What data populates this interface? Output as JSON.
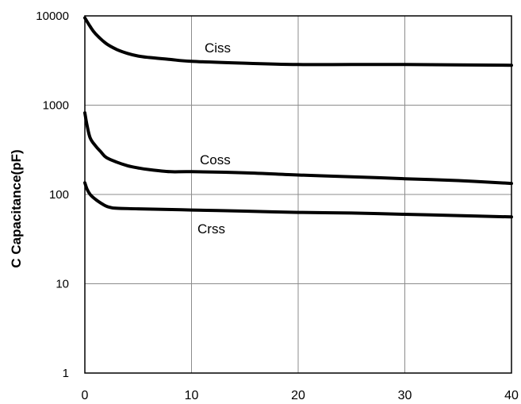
{
  "chart_data": {
    "type": "line",
    "title": "",
    "xlabel": "",
    "ylabel": "C Capacitance(pF)",
    "y_scale": "log",
    "xlim": [
      0,
      40
    ],
    "ylim": [
      1,
      10000
    ],
    "grid": true,
    "legend": "none",
    "x_ticks": [
      "0",
      "10",
      "20",
      "30",
      "40"
    ],
    "y_ticks": [
      "1",
      "10",
      "100",
      "1000",
      "10000"
    ],
    "series": [
      {
        "name": "Ciss",
        "x": [
          0,
          0.5,
          1,
          2,
          3,
          4,
          5,
          6,
          8,
          10,
          15,
          20,
          25,
          30,
          35,
          40
        ],
        "y": [
          9500,
          7600,
          6300,
          4900,
          4200,
          3800,
          3550,
          3420,
          3250,
          3100,
          2950,
          2850,
          2850,
          2850,
          2830,
          2800
        ]
      },
      {
        "name": "Coss",
        "x": [
          0,
          0.2,
          0.5,
          1,
          1.5,
          2,
          3,
          4,
          5,
          6,
          8,
          10,
          15,
          20,
          25,
          30,
          35,
          40
        ],
        "y": [
          820,
          600,
          430,
          350,
          300,
          260,
          230,
          210,
          198,
          190,
          180,
          180,
          175,
          165,
          158,
          150,
          143,
          133
        ]
      },
      {
        "name": "Crss",
        "x": [
          0,
          0.2,
          0.5,
          1,
          1.5,
          2,
          2.5,
          3,
          5,
          10,
          15,
          20,
          25,
          30,
          35,
          40
        ],
        "y": [
          135,
          115,
          100,
          88,
          80,
          74,
          71,
          70,
          69,
          67,
          65,
          63,
          62,
          60,
          58,
          56
        ]
      }
    ]
  }
}
